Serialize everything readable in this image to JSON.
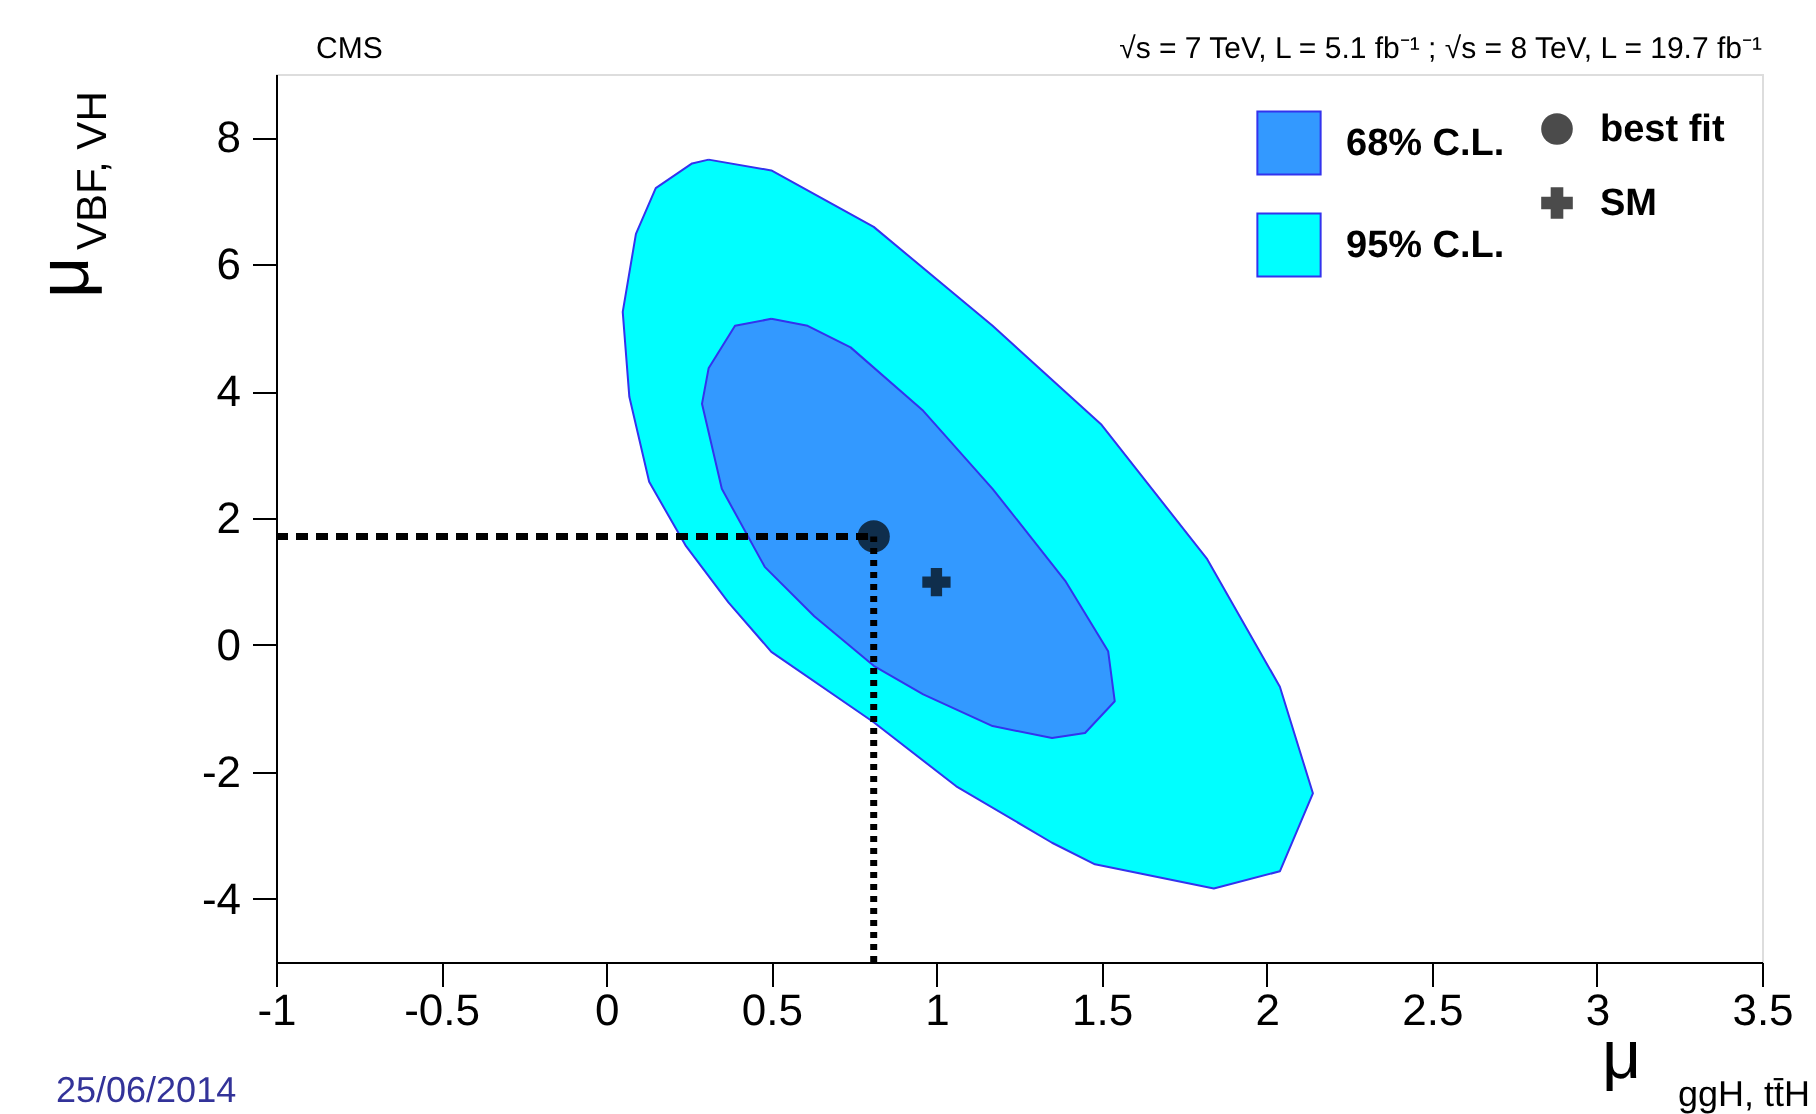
{
  "chart_data": {
    "type": "area",
    "title": "CMS",
    "subtitle": "√s = 7 TeV, L = 5.1 fb⁻¹ ; √s = 8 TeV, L = 19.7 fb⁻¹",
    "xlabel": "μ$_{ggH, tt̄H}$",
    "ylabel": "μ$_{VBF, VH}$",
    "annotations": [
      "25/06/2014"
    ],
    "xlim": [
      -1,
      3.5
    ],
    "ylim": [
      -5,
      9
    ],
    "xticks": [
      {
        "value": -1,
        "label": "-1"
      },
      -0.5,
      {
        "value": 0,
        "label": "0"
      },
      0.5,
      {
        "value": 1,
        "label": "1"
      },
      1.5,
      {
        "value": 2,
        "label": "2"
      },
      2.5,
      {
        "value": 3,
        "label": "3"
      },
      3.5
    ],
    "yticks": [
      -4,
      -2,
      0,
      2,
      4,
      6,
      8
    ],
    "grid": false,
    "legend": "top right",
    "series": [
      {
        "name": "95% C.L.",
        "color": "#00ffff",
        "x": [
          0.31,
          0.5,
          0.81,
          1.17,
          1.5,
          1.82,
          2.04,
          2.14,
          2.04,
          1.84,
          1.48,
          1.35,
          1.06,
          0.81,
          0.5,
          0.37,
          0.24,
          0.13,
          0.07,
          0.05,
          0.09,
          0.15,
          0.26
        ],
        "values": [
          7.65,
          7.48,
          6.59,
          5.03,
          3.47,
          1.35,
          -0.66,
          -2.34,
          -3.57,
          -3.84,
          -3.46,
          -3.12,
          -2.23,
          -1.22,
          -0.11,
          0.67,
          1.57,
          2.57,
          3.91,
          5.25,
          6.48,
          7.2,
          7.59
        ]
      },
      {
        "name": "68% C.L.",
        "color": "#3399ff",
        "x": [
          0.5,
          0.61,
          0.74,
          0.96,
          1.17,
          1.39,
          1.52,
          1.54,
          1.45,
          1.35,
          1.17,
          0.96,
          0.81,
          0.63,
          0.48,
          0.35,
          0.29,
          0.31,
          0.39
        ],
        "values": [
          5.14,
          5.03,
          4.69,
          3.69,
          2.46,
          1.01,
          -0.1,
          -0.89,
          -1.39,
          -1.47,
          -1.28,
          -0.78,
          -0.33,
          0.45,
          1.23,
          2.46,
          3.8,
          4.36,
          5.03
        ]
      },
      {
        "type": "line",
        "line_style": "dashed",
        "color": "#000000",
        "x": [
          -1,
          0.81
        ],
        "values": [
          1.71,
          1.71
        ]
      },
      {
        "type": "line",
        "line_style": "dotted",
        "color": "#000000",
        "x": [
          0.81,
          0.81
        ],
        "values": [
          -5,
          1.71
        ]
      },
      {
        "name": "best fit",
        "type": "scatter",
        "marker": "circle",
        "color": "#000000",
        "x": [
          0.81
        ],
        "values": [
          1.71
        ]
      },
      {
        "name": "SM",
        "type": "scatter",
        "marker": "cross",
        "color": "#000000",
        "x": [
          1.0
        ],
        "values": [
          0.99
        ]
      }
    ]
  }
}
